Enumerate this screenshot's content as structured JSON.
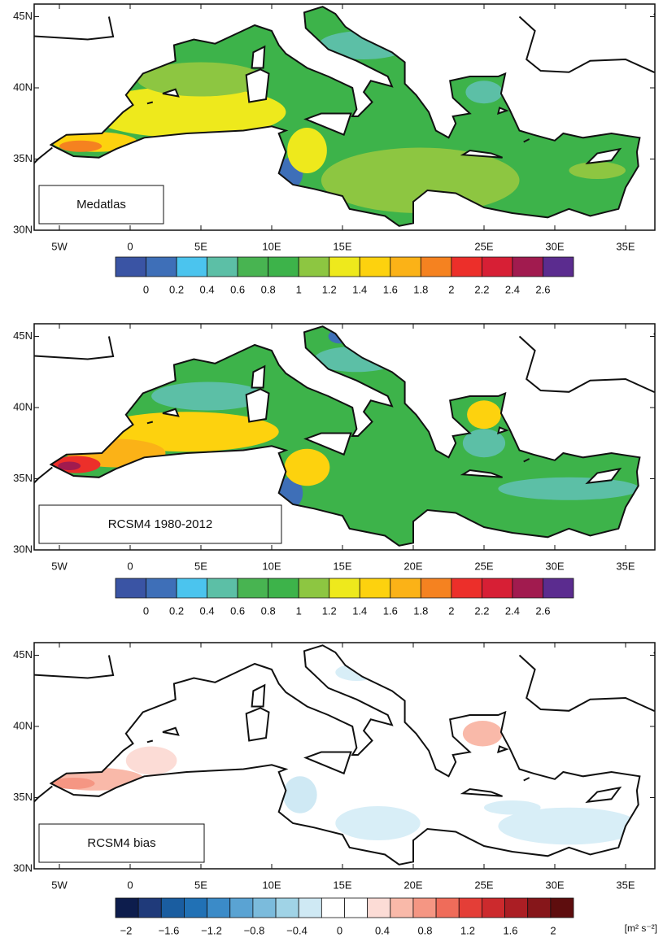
{
  "panels": [
    {
      "label": "Medatlas",
      "x_ticks": [
        "5W",
        "0",
        "5E",
        "10E",
        "15E",
        "25E",
        "30E",
        "35E"
      ],
      "y_ticks": [
        "30N",
        "35N",
        "40N",
        "45N"
      ],
      "colorbar": {
        "labels": [
          "0",
          "0.2",
          "0.4",
          "0.6",
          "0.8",
          "1",
          "1.2",
          "1.4",
          "1.6",
          "1.8",
          "2",
          "2.2",
          "2.4",
          "2.6"
        ],
        "colors": [
          "#3a54a4",
          "#3e6fb8",
          "#4bc4ee",
          "#5cbfa6",
          "#48b451",
          "#3db34a",
          "#8dc641",
          "#eee91c",
          "#fdd20e",
          "#fbb217",
          "#f58220",
          "#ec2f2a",
          "#d71f35",
          "#a11b4f",
          "#5b2c8f"
        ]
      }
    },
    {
      "label": "RCSM4 1980-2012",
      "x_ticks": [
        "5W",
        "0",
        "5E",
        "10E",
        "15E",
        "20E",
        "25E",
        "30E",
        "35E"
      ],
      "y_ticks": [
        "30N",
        "35N",
        "40N",
        "45N"
      ],
      "colorbar": {
        "labels": [
          "0",
          "0.2",
          "0.4",
          "0.6",
          "0.8",
          "1",
          "1.2",
          "1.4",
          "1.6",
          "1.8",
          "2",
          "2.2",
          "2.4",
          "2.6"
        ],
        "colors": [
          "#3a54a4",
          "#3e6fb8",
          "#4bc4ee",
          "#5cbfa6",
          "#48b451",
          "#3db34a",
          "#8dc641",
          "#eee91c",
          "#fdd20e",
          "#fbb217",
          "#f58220",
          "#ec2f2a",
          "#d71f35",
          "#a11b4f",
          "#5b2c8f"
        ]
      }
    },
    {
      "label": "RCSM4 bias",
      "x_ticks": [
        "5W",
        "0",
        "5E",
        "10E",
        "15E",
        "20E",
        "25E",
        "30E",
        "35E"
      ],
      "y_ticks": [
        "30N",
        "35N",
        "40N",
        "45N"
      ],
      "colorbar": {
        "labels": [
          "−2",
          "−1.6",
          "−1.2",
          "−0.8",
          "−0.4",
          "0",
          "0.4",
          "0.8",
          "1.2",
          "1.6",
          "2"
        ],
        "colors": [
          "#0d1d4d",
          "#1f3a7a",
          "#1a5da0",
          "#2171b5",
          "#3b8bc8",
          "#5aa3d3",
          "#7bbbdc",
          "#a0d3e6",
          "#cfe9f4",
          "#ffffff",
          "#ffffff",
          "#fcdcd6",
          "#f9b9a9",
          "#f59683",
          "#ef6c5a",
          "#e43e37",
          "#cc2a2d",
          "#ab1e24",
          "#86161a",
          "#5e0d0e"
        ],
        "unit": "[m² s⁻²]"
      }
    }
  ]
}
